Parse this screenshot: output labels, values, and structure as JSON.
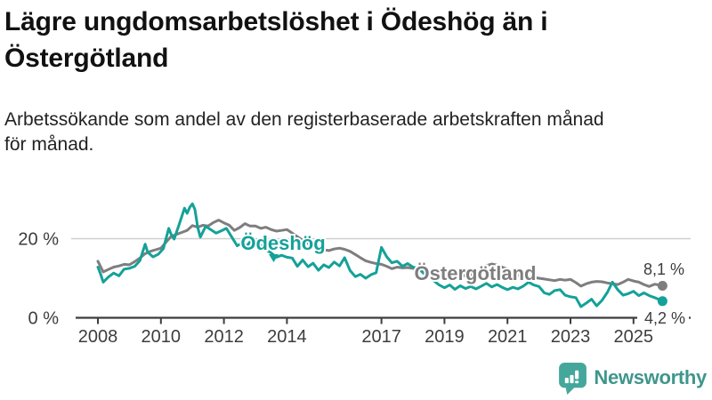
{
  "header": {
    "title_lines": [
      "Lägre ungdomsarbetslöshet i Ödeshög än i",
      "Östergötland"
    ],
    "subtitle_lines": [
      "Arbetssökande som andel av den registerbaserade arbetskraften månad",
      "för månad."
    ]
  },
  "chart_data": {
    "type": "line",
    "x_unit": "year-month",
    "y_unit": "percent",
    "xlim": [
      2007.3,
      2026.9
    ],
    "ylim": [
      0,
      32
    ],
    "x_ticks": [
      2008,
      2010,
      2012,
      2014,
      2017,
      2019,
      2021,
      2023,
      2025
    ],
    "y_ticks": [
      {
        "value": 0,
        "label": "0 %",
        "grid": false
      },
      {
        "value": 20,
        "label": "20 %",
        "grid": true
      }
    ],
    "colors": {
      "axis": "#3d3d3d",
      "gridline": "#cfcfcf",
      "tick_text": "#3d3d3d",
      "end_label_text": "#3d3d3d"
    },
    "series": [
      {
        "id": "ostergotland",
        "name": "Östergötland",
        "color": "#7e7e7e",
        "end_label": "8,1 %",
        "end_value": 8.1,
        "points": [
          [
            2008.0,
            14.3
          ],
          [
            2008.17,
            11.6
          ],
          [
            2008.33,
            12.2
          ],
          [
            2008.5,
            12.8
          ],
          [
            2008.67,
            13.1
          ],
          [
            2008.83,
            13.5
          ],
          [
            2009.0,
            13.4
          ],
          [
            2009.17,
            14.2
          ],
          [
            2009.33,
            15.1
          ],
          [
            2009.5,
            16.2
          ],
          [
            2009.67,
            16.8
          ],
          [
            2009.83,
            17.2
          ],
          [
            2010.0,
            17.6
          ],
          [
            2010.17,
            19.2
          ],
          [
            2010.33,
            20.6
          ],
          [
            2010.5,
            21.1
          ],
          [
            2010.67,
            21.6
          ],
          [
            2010.83,
            22.1
          ],
          [
            2011.0,
            23.3
          ],
          [
            2011.17,
            22.9
          ],
          [
            2011.33,
            23.4
          ],
          [
            2011.5,
            23.2
          ],
          [
            2011.67,
            24.1
          ],
          [
            2011.83,
            24.7
          ],
          [
            2012.0,
            24.0
          ],
          [
            2012.17,
            23.4
          ],
          [
            2012.33,
            22.1
          ],
          [
            2012.5,
            22.8
          ],
          [
            2012.67,
            23.8
          ],
          [
            2012.83,
            23.2
          ],
          [
            2013.0,
            23.2
          ],
          [
            2013.17,
            22.6
          ],
          [
            2013.33,
            22.9
          ],
          [
            2013.5,
            22.3
          ],
          [
            2013.67,
            21.9
          ],
          [
            2013.83,
            22.1
          ],
          [
            2014.0,
            22.3
          ],
          [
            2014.17,
            21.4
          ],
          [
            2014.33,
            20.5
          ],
          [
            2014.5,
            19.6
          ],
          [
            2014.67,
            18.8
          ],
          [
            2014.83,
            18.2
          ],
          [
            2015.0,
            17.8
          ],
          [
            2015.17,
            17.2
          ],
          [
            2015.33,
            17.0
          ],
          [
            2015.5,
            17.4
          ],
          [
            2015.67,
            17.6
          ],
          [
            2015.83,
            17.3
          ],
          [
            2016.0,
            16.8
          ],
          [
            2016.17,
            16.0
          ],
          [
            2016.33,
            15.2
          ],
          [
            2016.5,
            14.4
          ],
          [
            2016.67,
            14.0
          ],
          [
            2016.83,
            13.7
          ],
          [
            2017.0,
            13.5
          ],
          [
            2017.17,
            13.0
          ],
          [
            2017.33,
            12.4
          ],
          [
            2017.5,
            12.8
          ],
          [
            2017.67,
            12.6
          ],
          [
            2017.83,
            12.7
          ],
          [
            2018.0,
            12.5
          ],
          [
            2018.17,
            12.2
          ],
          [
            2018.33,
            12.0
          ],
          [
            2018.5,
            11.6
          ],
          [
            2018.67,
            11.2
          ],
          [
            2018.83,
            11.0
          ],
          [
            2019.0,
            10.8
          ],
          [
            2019.17,
            10.5
          ],
          [
            2019.33,
            10.3
          ],
          [
            2019.5,
            10.5
          ],
          [
            2019.67,
            10.7
          ],
          [
            2019.83,
            10.9
          ],
          [
            2020.0,
            11.1
          ],
          [
            2020.17,
            12.1
          ],
          [
            2020.33,
            13.2
          ],
          [
            2020.5,
            13.6
          ],
          [
            2020.67,
            13.3
          ],
          [
            2020.83,
            12.8
          ],
          [
            2021.0,
            12.3
          ],
          [
            2021.17,
            11.5
          ],
          [
            2021.33,
            10.8
          ],
          [
            2021.5,
            10.1
          ],
          [
            2021.67,
            10.0
          ],
          [
            2021.83,
            10.2
          ],
          [
            2022.0,
            10.0
          ],
          [
            2022.17,
            9.8
          ],
          [
            2022.33,
            9.6
          ],
          [
            2022.5,
            9.4
          ],
          [
            2022.67,
            9.7
          ],
          [
            2022.83,
            9.5
          ],
          [
            2023.0,
            9.7
          ],
          [
            2023.17,
            8.9
          ],
          [
            2023.33,
            8.0
          ],
          [
            2023.5,
            8.6
          ],
          [
            2023.67,
            9.0
          ],
          [
            2023.83,
            9.2
          ],
          [
            2024.0,
            9.1
          ],
          [
            2024.17,
            8.8
          ],
          [
            2024.33,
            8.6
          ],
          [
            2024.5,
            8.4
          ],
          [
            2024.67,
            9.0
          ],
          [
            2024.83,
            9.7
          ],
          [
            2025.0,
            9.3
          ],
          [
            2025.17,
            9.0
          ],
          [
            2025.33,
            8.4
          ],
          [
            2025.5,
            7.9
          ],
          [
            2025.67,
            8.5
          ],
          [
            2025.92,
            8.1
          ]
        ]
      },
      {
        "id": "odeshog",
        "name": "Ödeshög",
        "color": "#14a199",
        "end_label": "4,2 %",
        "end_value": 4.2,
        "points": [
          [
            2008.0,
            12.8
          ],
          [
            2008.08,
            11.2
          ],
          [
            2008.17,
            9.0
          ],
          [
            2008.33,
            10.3
          ],
          [
            2008.5,
            11.3
          ],
          [
            2008.67,
            10.6
          ],
          [
            2008.83,
            12.3
          ],
          [
            2009.0,
            12.5
          ],
          [
            2009.17,
            13.0
          ],
          [
            2009.33,
            14.4
          ],
          [
            2009.5,
            18.6
          ],
          [
            2009.58,
            16.6
          ],
          [
            2009.75,
            15.4
          ],
          [
            2009.92,
            16.1
          ],
          [
            2010.08,
            17.5
          ],
          [
            2010.25,
            22.6
          ],
          [
            2010.33,
            21.0
          ],
          [
            2010.42,
            19.9
          ],
          [
            2010.58,
            23.6
          ],
          [
            2010.75,
            27.7
          ],
          [
            2010.83,
            26.4
          ],
          [
            2010.92,
            28.0
          ],
          [
            2011.0,
            28.8
          ],
          [
            2011.08,
            27.4
          ],
          [
            2011.17,
            22.8
          ],
          [
            2011.25,
            20.4
          ],
          [
            2011.42,
            23.1
          ],
          [
            2011.58,
            22.3
          ],
          [
            2011.75,
            21.4
          ],
          [
            2011.92,
            22.0
          ],
          [
            2012.08,
            22.6
          ],
          [
            2012.25,
            20.4
          ],
          [
            2012.42,
            18.2
          ],
          [
            2012.58,
            18.9
          ],
          [
            2012.67,
            17.6
          ],
          [
            2012.83,
            19.2
          ],
          [
            2013.0,
            19.8
          ],
          [
            2013.17,
            18.4
          ],
          [
            2013.33,
            17.2
          ],
          [
            2013.5,
            16.4
          ],
          [
            2013.67,
            15.3
          ],
          [
            2013.83,
            15.8
          ],
          [
            2014.0,
            15.3
          ],
          [
            2014.17,
            15.1
          ],
          [
            2014.33,
            13.0
          ],
          [
            2014.5,
            14.6
          ],
          [
            2014.67,
            12.9
          ],
          [
            2014.83,
            13.8
          ],
          [
            2015.0,
            12.0
          ],
          [
            2015.17,
            13.4
          ],
          [
            2015.33,
            12.7
          ],
          [
            2015.5,
            14.1
          ],
          [
            2015.67,
            13.1
          ],
          [
            2015.83,
            15.2
          ],
          [
            2016.0,
            12.0
          ],
          [
            2016.17,
            10.4
          ],
          [
            2016.33,
            11.0
          ],
          [
            2016.5,
            10.0
          ],
          [
            2016.67,
            10.9
          ],
          [
            2016.83,
            11.4
          ],
          [
            2017.0,
            17.8
          ],
          [
            2017.17,
            15.4
          ],
          [
            2017.33,
            13.9
          ],
          [
            2017.5,
            14.3
          ],
          [
            2017.67,
            13.0
          ],
          [
            2017.83,
            13.7
          ],
          [
            2018.0,
            12.8
          ],
          [
            2018.17,
            12.5
          ],
          [
            2018.33,
            11.3
          ],
          [
            2018.5,
            10.3
          ],
          [
            2018.67,
            9.3
          ],
          [
            2018.83,
            8.3
          ],
          [
            2019.0,
            7.6
          ],
          [
            2019.17,
            8.3
          ],
          [
            2019.33,
            7.2
          ],
          [
            2019.5,
            8.1
          ],
          [
            2019.67,
            7.4
          ],
          [
            2019.83,
            7.9
          ],
          [
            2020.0,
            7.3
          ],
          [
            2020.17,
            8.0
          ],
          [
            2020.33,
            8.7
          ],
          [
            2020.5,
            7.8
          ],
          [
            2020.67,
            8.4
          ],
          [
            2020.83,
            7.7
          ],
          [
            2021.0,
            7.1
          ],
          [
            2021.17,
            7.7
          ],
          [
            2021.33,
            7.3
          ],
          [
            2021.5,
            8.0
          ],
          [
            2021.67,
            9.0
          ],
          [
            2021.83,
            8.3
          ],
          [
            2022.0,
            7.9
          ],
          [
            2022.17,
            6.3
          ],
          [
            2022.33,
            5.9
          ],
          [
            2022.5,
            6.9
          ],
          [
            2022.67,
            7.1
          ],
          [
            2022.83,
            5.7
          ],
          [
            2023.0,
            5.3
          ],
          [
            2023.17,
            5.1
          ],
          [
            2023.33,
            2.8
          ],
          [
            2023.5,
            3.7
          ],
          [
            2023.67,
            4.7
          ],
          [
            2023.83,
            3.0
          ],
          [
            2024.0,
            4.4
          ],
          [
            2024.17,
            6.4
          ],
          [
            2024.33,
            9.0
          ],
          [
            2024.5,
            7.1
          ],
          [
            2024.67,
            5.7
          ],
          [
            2024.83,
            6.1
          ],
          [
            2025.0,
            6.7
          ],
          [
            2025.17,
            5.6
          ],
          [
            2025.33,
            6.3
          ],
          [
            2025.5,
            5.6
          ],
          [
            2025.67,
            5.1
          ],
          [
            2025.92,
            4.2
          ]
        ]
      }
    ]
  },
  "branding": {
    "logo_text": "Newsworthy",
    "logo_icon": "bar-chart-speech-bubble-icon",
    "icon_color": "#45a79b",
    "text_color": "#3f968c"
  }
}
